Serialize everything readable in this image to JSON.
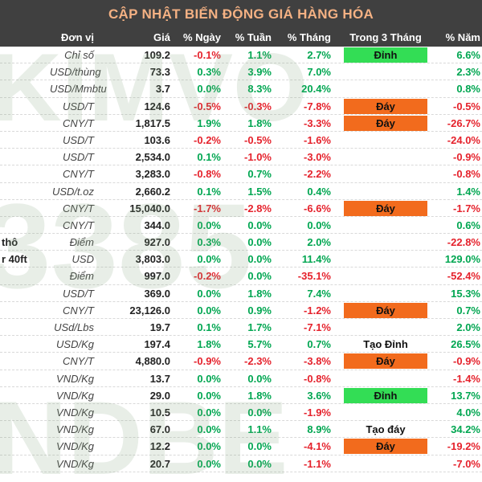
{
  "title": "CẬP NHẬT BIẾN ĐỘNG GIÁ HÀNG HÓA",
  "headers": {
    "unit": "Đơn vị",
    "price": "Giá",
    "day": "% Ngày",
    "week": "% Tuần",
    "month": "% Tháng",
    "trend3m": "Trong 3 Tháng",
    "year": "% Năm"
  },
  "colors": {
    "header_bg": "#404040",
    "title_text": "#f4b183",
    "positive": "#00a651",
    "negative": "#e5222c",
    "peak_fill": "#33dd55",
    "bottom_fill": "#f26b1d"
  },
  "watermark": [
    "KIMVO",
    "3385",
    "NDBE"
  ],
  "rows": [
    {
      "name": "",
      "unit": "Chỉ số",
      "price": "109.2",
      "day": "-0.1%",
      "week": "1.1%",
      "month": "2.7%",
      "trend": "Đỉnh",
      "trend_type": "peak",
      "year": "6.6%"
    },
    {
      "name": "",
      "unit": "USD/thùng",
      "price": "73.3",
      "day": "0.3%",
      "week": "3.9%",
      "month": "7.0%",
      "trend": "",
      "trend_type": "",
      "year": "2.3%"
    },
    {
      "name": "",
      "unit": "USD/Mmbtu",
      "price": "3.7",
      "day": "0.0%",
      "week": "8.3%",
      "month": "20.4%",
      "trend": "",
      "trend_type": "",
      "year": "0.8%"
    },
    {
      "name": "",
      "unit": "USD/T",
      "price": "124.6",
      "day": "-0.5%",
      "week": "-0.3%",
      "month": "-7.8%",
      "trend": "Đáy",
      "trend_type": "bottom",
      "year": "-0.5%"
    },
    {
      "name": "",
      "unit": "CNY/T",
      "price": "1,817.5",
      "day": "1.9%",
      "week": "1.8%",
      "month": "-3.3%",
      "trend": "Đáy",
      "trend_type": "bottom",
      "year": "-26.7%"
    },
    {
      "name": "",
      "unit": "USD/T",
      "price": "103.6",
      "day": "-0.2%",
      "week": "-0.5%",
      "month": "-1.6%",
      "trend": "",
      "trend_type": "",
      "year": "-24.0%"
    },
    {
      "name": "",
      "unit": "USD/T",
      "price": "2,534.0",
      "day": "0.1%",
      "week": "-1.0%",
      "month": "-3.0%",
      "trend": "",
      "trend_type": "",
      "year": "-0.9%"
    },
    {
      "name": "",
      "unit": "CNY/T",
      "price": "3,283.0",
      "day": "-0.8%",
      "week": "0.7%",
      "month": "-2.2%",
      "trend": "",
      "trend_type": "",
      "year": "-0.8%"
    },
    {
      "name": "",
      "unit": "USD/t.oz",
      "price": "2,660.2",
      "day": "0.1%",
      "week": "1.5%",
      "month": "0.4%",
      "trend": "",
      "trend_type": "",
      "year": "1.4%"
    },
    {
      "name": "",
      "unit": "CNY/T",
      "price": "15,040.0",
      "day": "-1.7%",
      "week": "-2.8%",
      "month": "-6.6%",
      "trend": "Đáy",
      "trend_type": "bottom",
      "year": "-1.7%"
    },
    {
      "name": "",
      "unit": "CNY/T",
      "price": "344.0",
      "day": "0.0%",
      "week": "0.0%",
      "month": "0.0%",
      "trend": "",
      "trend_type": "",
      "year": "0.6%"
    },
    {
      "name": "thô",
      "unit": "Điểm",
      "price": "927.0",
      "day": "0.3%",
      "week": "0.0%",
      "month": "2.0%",
      "trend": "",
      "trend_type": "",
      "year": "-22.8%"
    },
    {
      "name": "r 40ft",
      "unit": "USD",
      "price": "3,803.0",
      "day": "0.0%",
      "week": "0.0%",
      "month": "11.4%",
      "trend": "",
      "trend_type": "",
      "year": "129.0%"
    },
    {
      "name": "",
      "unit": "Điểm",
      "price": "997.0",
      "day": "-0.2%",
      "week": "0.0%",
      "month": "-35.1%",
      "trend": "",
      "trend_type": "",
      "year": "-52.4%"
    },
    {
      "name": "",
      "unit": "USD/T",
      "price": "369.0",
      "day": "0.0%",
      "week": "1.8%",
      "month": "7.4%",
      "trend": "",
      "trend_type": "",
      "year": "15.3%"
    },
    {
      "name": "",
      "unit": "CNY/T",
      "price": "23,126.0",
      "day": "0.0%",
      "week": "0.9%",
      "month": "-1.2%",
      "trend": "Đáy",
      "trend_type": "bottom",
      "year": "0.7%"
    },
    {
      "name": "",
      "unit": "USd/Lbs",
      "price": "19.7",
      "day": "0.1%",
      "week": "1.7%",
      "month": "-7.1%",
      "trend": "",
      "trend_type": "",
      "year": "2.0%"
    },
    {
      "name": "",
      "unit": "USD/Kg",
      "price": "197.4",
      "day": "1.8%",
      "week": "5.7%",
      "month": "0.7%",
      "trend": "Tạo Đỉnh",
      "trend_type": "text",
      "year": "26.5%"
    },
    {
      "name": "",
      "unit": "CNY/T",
      "price": "4,880.0",
      "day": "-0.9%",
      "week": "-2.3%",
      "month": "-3.8%",
      "trend": "Đáy",
      "trend_type": "bottom",
      "year": "-0.9%"
    },
    {
      "name": "",
      "unit": "VND/Kg",
      "price": "13.7",
      "day": "0.0%",
      "week": "0.0%",
      "month": "-0.8%",
      "trend": "",
      "trend_type": "",
      "year": "-1.4%"
    },
    {
      "name": "",
      "unit": "VND/Kg",
      "price": "29.0",
      "day": "0.0%",
      "week": "1.8%",
      "month": "3.6%",
      "trend": "Đỉnh",
      "trend_type": "peak",
      "year": "13.7%"
    },
    {
      "name": "",
      "unit": "VND/Kg",
      "price": "10.5",
      "day": "0.0%",
      "week": "0.0%",
      "month": "-1.9%",
      "trend": "",
      "trend_type": "",
      "year": "4.0%"
    },
    {
      "name": "",
      "unit": "VND/Kg",
      "price": "67.0",
      "day": "0.0%",
      "week": "1.1%",
      "month": "8.9%",
      "trend": "Tạo đáy",
      "trend_type": "text",
      "year": "34.2%"
    },
    {
      "name": "",
      "unit": "VND/Kg",
      "price": "12.2",
      "day": "0.0%",
      "week": "0.0%",
      "month": "-4.1%",
      "trend": "Đáy",
      "trend_type": "bottom",
      "year": "-19.2%"
    },
    {
      "name": "",
      "unit": "VND/Kg",
      "price": "20.7",
      "day": "0.0%",
      "week": "0.0%",
      "month": "-1.1%",
      "trend": "",
      "trend_type": "",
      "year": "-7.0%"
    }
  ]
}
